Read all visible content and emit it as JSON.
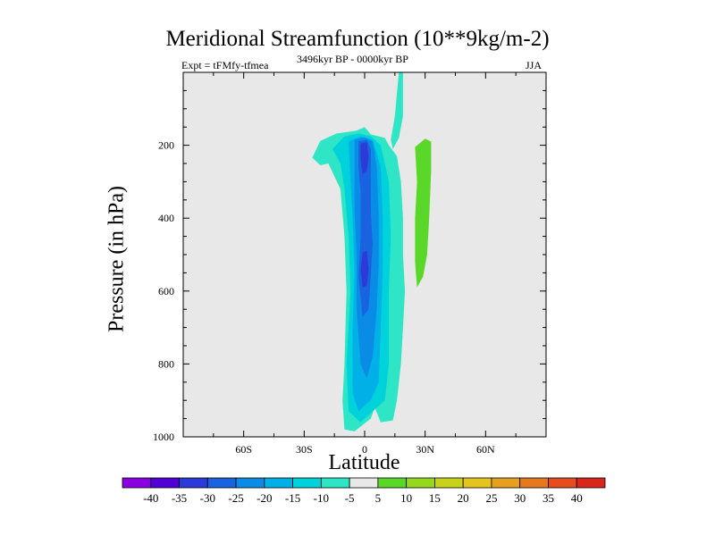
{
  "chart_data": {
    "type": "contour",
    "title": "Meridional Streamfunction (10**9kg/m-2)",
    "subtitle_left": "Expt = tFMfy-tfmea",
    "subtitle_center": "3496kyr BP - 0000kyr BP",
    "subtitle_right": "JJA",
    "xlabel": "Latitude",
    "ylabel": "Pressure (in hPa)",
    "xlim": [
      -90,
      90
    ],
    "ylim": [
      0,
      1000
    ],
    "y_inverted": true,
    "xticks": [
      {
        "value": -60,
        "label": "60S"
      },
      {
        "value": -30,
        "label": "30S"
      },
      {
        "value": 0,
        "label": "0"
      },
      {
        "value": 30,
        "label": "30N"
      },
      {
        "value": 60,
        "label": "60N"
      }
    ],
    "yticks": [
      {
        "value": 200,
        "label": "200"
      },
      {
        "value": 400,
        "label": "400"
      },
      {
        "value": 600,
        "label": "600"
      },
      {
        "value": 800,
        "label": "800"
      },
      {
        "value": 1000,
        "label": "1000"
      }
    ],
    "colorbar": {
      "levels": [
        -40,
        -35,
        -30,
        -25,
        -20,
        -15,
        -10,
        -5,
        5,
        10,
        15,
        20,
        25,
        30,
        35,
        40
      ],
      "colors": [
        "#8a00e0",
        "#5200d8",
        "#2c3ad8",
        "#1a62e0",
        "#0a8ce6",
        "#00b0e6",
        "#00d2dc",
        "#2ee6c6",
        "#e8e8e8",
        "#5ad82a",
        "#96d81e",
        "#c8d21a",
        "#e6c41e",
        "#e6a01e",
        "#e6781e",
        "#e64c1e",
        "#d8261a"
      ]
    },
    "regions": [
      {
        "name": "outer-negative",
        "level": -10,
        "color": "#2ee6c6",
        "points": [
          [
            -26,
            234
          ],
          [
            -22,
            188
          ],
          [
            -14,
            168
          ],
          [
            -4,
            160
          ],
          [
            0,
            150
          ],
          [
            3,
            170
          ],
          [
            10,
            180
          ],
          [
            12,
            200
          ],
          [
            16,
            230
          ],
          [
            18,
            300
          ],
          [
            19,
            400
          ],
          [
            19,
            500
          ],
          [
            20,
            600
          ],
          [
            19,
            700
          ],
          [
            18,
            800
          ],
          [
            16,
            900
          ],
          [
            14,
            955
          ],
          [
            8,
            960
          ],
          [
            5,
            920
          ],
          [
            3,
            950
          ],
          [
            -5,
            985
          ],
          [
            -10,
            980
          ],
          [
            -11,
            900
          ],
          [
            -10,
            800
          ],
          [
            -9,
            600
          ],
          [
            -10,
            450
          ],
          [
            -12,
            320
          ],
          [
            -18,
            250
          ],
          [
            -22,
            255
          ]
        ]
      },
      {
        "name": "ascending-branch",
        "level": -10,
        "color": "#2ee6c6",
        "points": [
          [
            17,
            0
          ],
          [
            19,
            0
          ],
          [
            19,
            120
          ],
          [
            17,
            180
          ],
          [
            14,
            210
          ],
          [
            13,
            185
          ],
          [
            15,
            120
          ]
        ]
      },
      {
        "name": "level-minus-15",
        "level": -15,
        "color": "#00d2dc",
        "points": [
          [
            -16,
            210
          ],
          [
            -10,
            176
          ],
          [
            -3,
            168
          ],
          [
            3,
            175
          ],
          [
            8,
            200
          ],
          [
            12,
            300
          ],
          [
            13,
            450
          ],
          [
            12,
            600
          ],
          [
            12,
            800
          ],
          [
            10,
            900
          ],
          [
            4,
            930
          ],
          [
            -2,
            960
          ],
          [
            -8,
            930
          ],
          [
            -9,
            800
          ],
          [
            -7,
            600
          ],
          [
            -8,
            450
          ],
          [
            -10,
            320
          ],
          [
            -12,
            250
          ]
        ]
      },
      {
        "name": "level-minus-20",
        "level": -20,
        "color": "#00b0e6",
        "points": [
          [
            -8,
            190
          ],
          [
            -2,
            175
          ],
          [
            4,
            185
          ],
          [
            8,
            260
          ],
          [
            9,
            400
          ],
          [
            9,
            550
          ],
          [
            8,
            700
          ],
          [
            7,
            850
          ],
          [
            3,
            900
          ],
          [
            -3,
            930
          ],
          [
            -6,
            880
          ],
          [
            -6,
            700
          ],
          [
            -5,
            550
          ],
          [
            -6,
            400
          ],
          [
            -7,
            300
          ]
        ]
      },
      {
        "name": "level-minus-25",
        "level": -25,
        "color": "#0a8ce6",
        "points": [
          [
            -5,
            185
          ],
          [
            0,
            178
          ],
          [
            4,
            190
          ],
          [
            6,
            260
          ],
          [
            7,
            400
          ],
          [
            7,
            520
          ],
          [
            6,
            650
          ],
          [
            4,
            780
          ],
          [
            1,
            840
          ],
          [
            -2,
            800
          ],
          [
            -4,
            650
          ],
          [
            -4,
            500
          ],
          [
            -5,
            380
          ],
          [
            -5,
            280
          ]
        ]
      },
      {
        "name": "level-minus-30",
        "level": -30,
        "color": "#1a62e0",
        "points": [
          [
            -3,
            190
          ],
          [
            1,
            185
          ],
          [
            3,
            210
          ],
          [
            3,
            280
          ],
          [
            3,
            380
          ],
          [
            4,
            470
          ],
          [
            3,
            560
          ],
          [
            2,
            650
          ],
          [
            -1,
            670
          ],
          [
            -3,
            560
          ],
          [
            -2,
            450
          ],
          [
            -2,
            330
          ],
          [
            -3,
            260
          ]
        ]
      },
      {
        "name": "level-minus-35",
        "level": -35,
        "color": "#2c3ad8",
        "points": [
          [
            -2,
            195
          ],
          [
            1,
            192
          ],
          [
            2,
            230
          ],
          [
            1,
            270
          ],
          [
            -1,
            280
          ],
          [
            -2,
            240
          ]
        ]
      },
      {
        "name": "level-minus-35-lower",
        "level": -35,
        "color": "#2c3ad8",
        "points": [
          [
            -1,
            495
          ],
          [
            1,
            490
          ],
          [
            2,
            540
          ],
          [
            1,
            585
          ],
          [
            -1,
            590
          ],
          [
            -2,
            540
          ]
        ]
      },
      {
        "name": "positive-cell",
        "level": 5,
        "color": "#5ad82a",
        "points": [
          [
            25,
            205
          ],
          [
            30,
            182
          ],
          [
            33,
            190
          ],
          [
            33,
            270
          ],
          [
            32,
            400
          ],
          [
            31,
            500
          ],
          [
            29,
            560
          ],
          [
            26,
            590
          ],
          [
            25,
            520
          ],
          [
            25,
            400
          ],
          [
            26,
            300
          ]
        ]
      }
    ]
  }
}
